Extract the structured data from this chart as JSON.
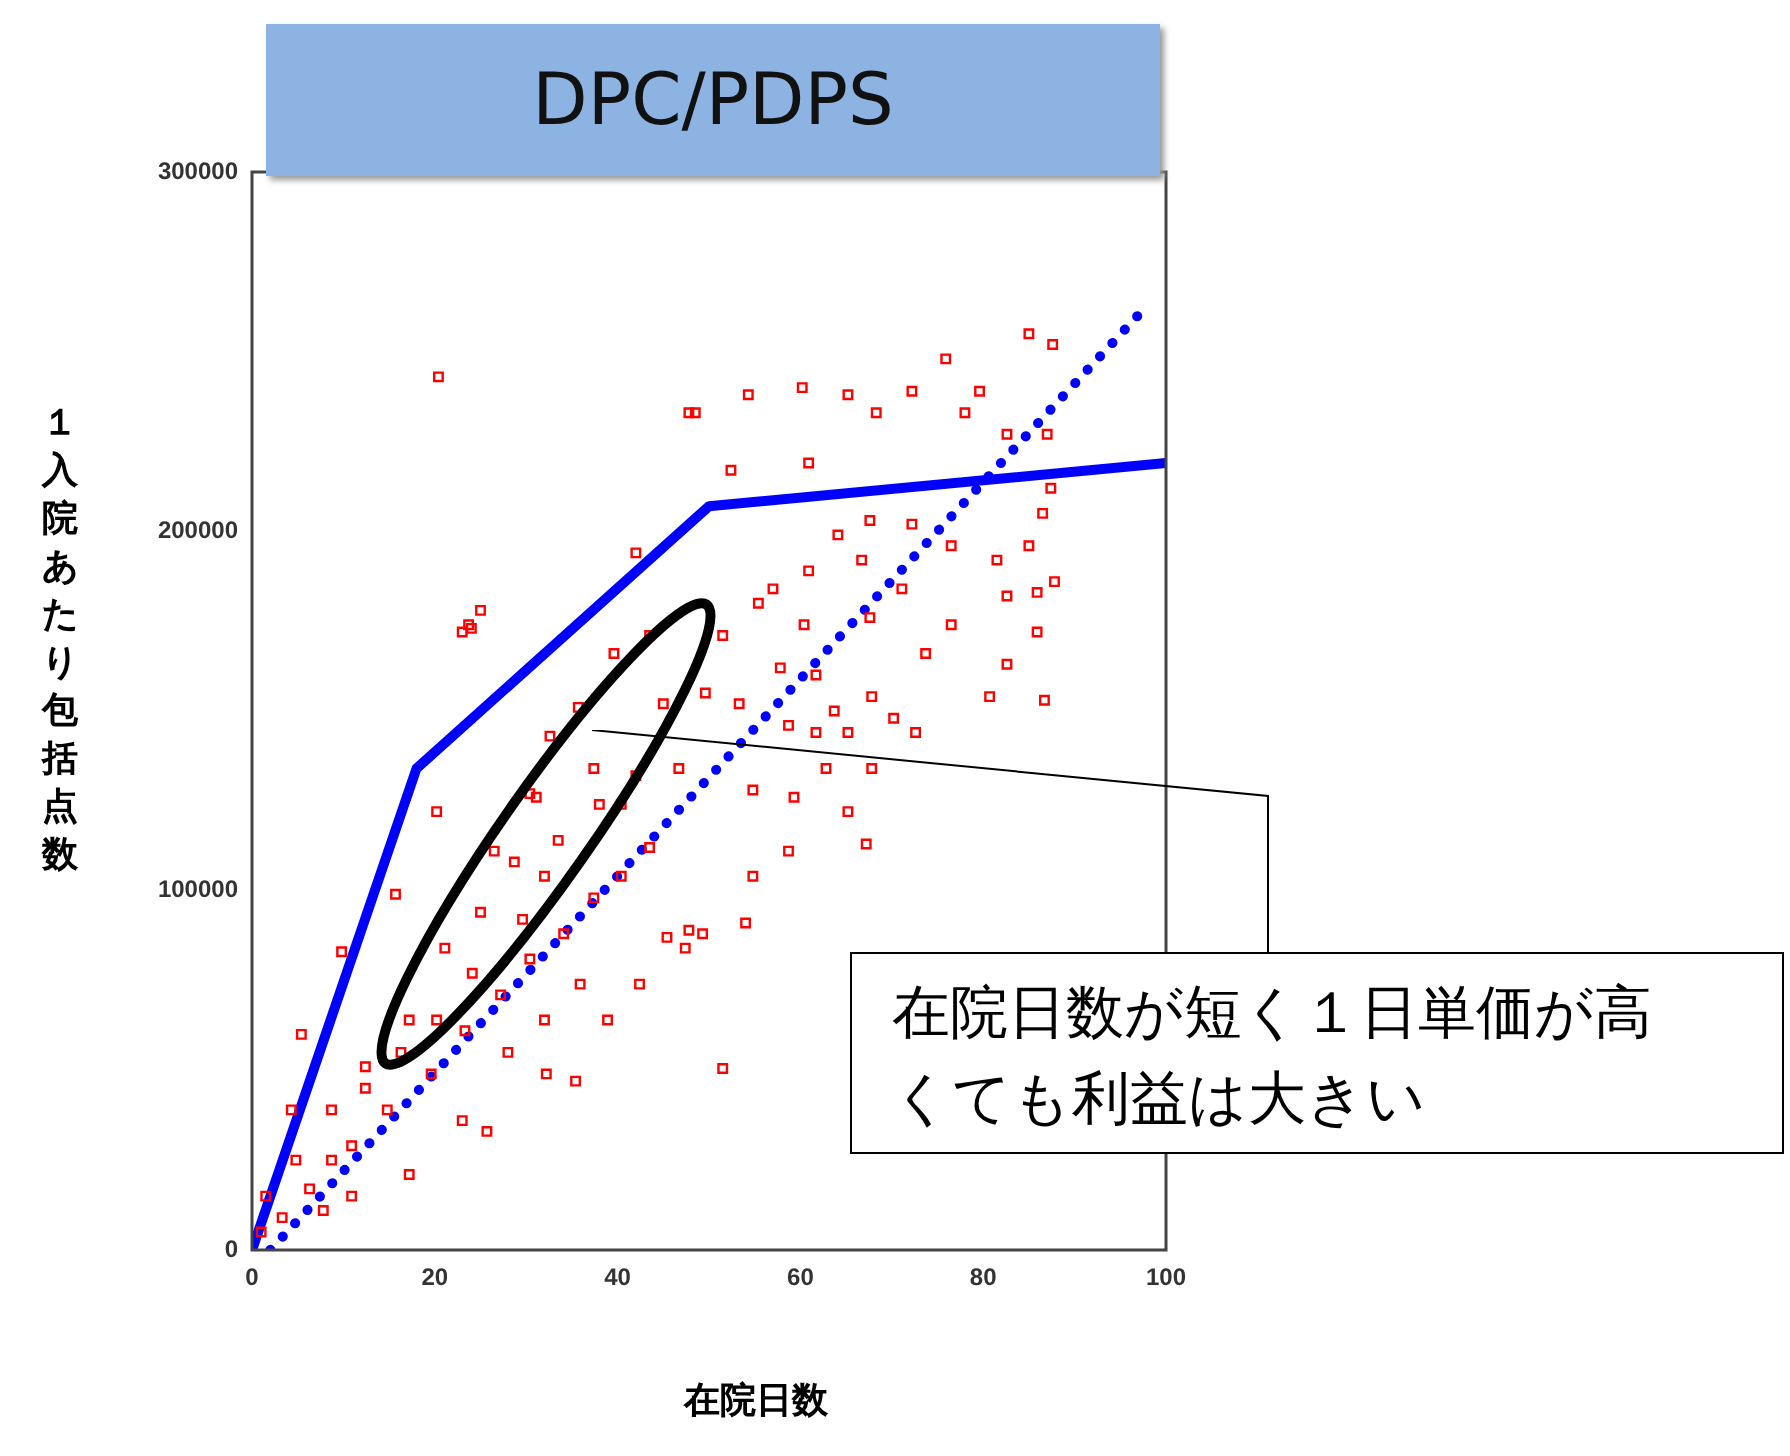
{
  "chart_data": {
    "type": "scatter",
    "title": "DPC/PDPS",
    "xlabel": "在院日数",
    "ylabel": "１入院あたり包括点数",
    "xlim": [
      0,
      100
    ],
    "ylim": [
      0,
      300000
    ],
    "xticks": [
      0,
      20,
      40,
      60,
      80,
      100
    ],
    "yticks": [
      0,
      100000,
      200000,
      300000
    ],
    "grid": false,
    "legend": false,
    "annotations": [
      "在院日数が短く１日単価が高くても利益は大きい"
    ],
    "series": [
      {
        "type": "scatter",
        "color": "#ff0000",
        "marker": "square",
        "x": [
          20.4,
          24,
          25,
          51.5,
          85,
          87.6,
          75.9,
          48.5,
          54.3,
          60.2,
          65.2,
          72.2,
          79.6,
          52.4,
          60.9,
          68.3,
          78,
          82.6,
          87,
          87.4,
          86.5,
          85,
          87.8,
          85.9,
          81.5,
          82.6,
          85.9,
          80.7,
          82.6,
          86.7,
          76.5,
          73.7,
          71.1,
          72.2,
          76.5,
          67.6,
          66.7,
          67.6,
          64.1,
          60.9,
          60.4,
          57,
          55.4,
          51.5,
          57.8,
          61.7,
          63.7,
          67.8,
          70.2,
          72.6,
          65.2,
          61.7,
          58.7,
          53.3,
          49.6,
          54.8,
          59.3,
          62.8,
          65.2,
          67.2,
          67.8,
          54.8,
          54,
          49.3,
          47.4,
          58.7,
          47.8,
          42,
          43.5,
          39.6,
          35.7,
          23.7,
          23,
          32.6,
          45,
          46.7,
          40.4,
          37.4,
          30.4,
          20.2,
          15.7,
          9.8,
          5.4,
          4.3,
          8.7,
          17.2,
          25.7,
          23,
          32.2,
          35.4,
          42.4,
          47.8,
          45.4,
          32,
          26.5,
          29.6,
          24.1,
          20.2,
          16.3,
          12.4,
          8.7,
          4.8,
          1.5,
          3.3,
          6.3,
          10.9,
          14.8,
          19.6,
          23.3,
          27.2,
          30.4,
          34.1,
          37.4,
          40.4,
          43.5,
          35.9,
          38.9,
          32,
          28,
          10.9,
          7.8,
          1,
          12.4,
          17.2,
          21.1,
          25,
          28.7,
          33.5,
          38,
          42,
          31.1
        ],
        "values": [
          243000,
          173000,
          178000,
          50500,
          255000,
          252000,
          248000,
          233000,
          238000,
          240000,
          238000,
          239000,
          239000,
          217000,
          219000,
          233000,
          233000,
          227000,
          227000,
          212000,
          205000,
          196000,
          186000,
          183000,
          192000,
          182000,
          172000,
          154000,
          163000,
          153000,
          174000,
          166000,
          184000,
          202000,
          196000,
          203000,
          192000,
          176000,
          199000,
          189000,
          174000,
          184000,
          180000,
          171000,
          162000,
          160000,
          150000,
          154000,
          148000,
          144000,
          144000,
          144000,
          146000,
          152000,
          155000,
          128000,
          126000,
          134000,
          122000,
          113000,
          134000,
          104000,
          91000,
          88000,
          84000,
          111000,
          233000,
          194000,
          171000,
          166000,
          151000,
          174000,
          172000,
          143000,
          152000,
          134000,
          124000,
          134000,
          127000,
          122000,
          99000,
          83000,
          60000,
          39000,
          25000,
          21000,
          33000,
          36000,
          49000,
          47000,
          74000,
          89000,
          87000,
          104000,
          111000,
          92000,
          77000,
          64000,
          55000,
          45000,
          39000,
          25000,
          15000,
          9000,
          17000,
          29000,
          39000,
          49000,
          61000,
          71000,
          81000,
          88000,
          98000,
          104000,
          112000,
          74000,
          64000,
          64000,
          55000,
          15000,
          11000,
          5000,
          51000,
          64000,
          84000,
          94000,
          108000,
          114000,
          124000,
          132000,
          126000
        ]
      },
      {
        "type": "line",
        "color": "#0000ff",
        "x": [
          0,
          18,
          50,
          100
        ],
        "values": [
          0,
          134000,
          207000,
          219000
        ]
      },
      {
        "type": "line",
        "color": "#0000ff",
        "line_style": "dotted",
        "x": [
          2,
          98
        ],
        "values": [
          0,
          263000
        ]
      }
    ]
  }
}
